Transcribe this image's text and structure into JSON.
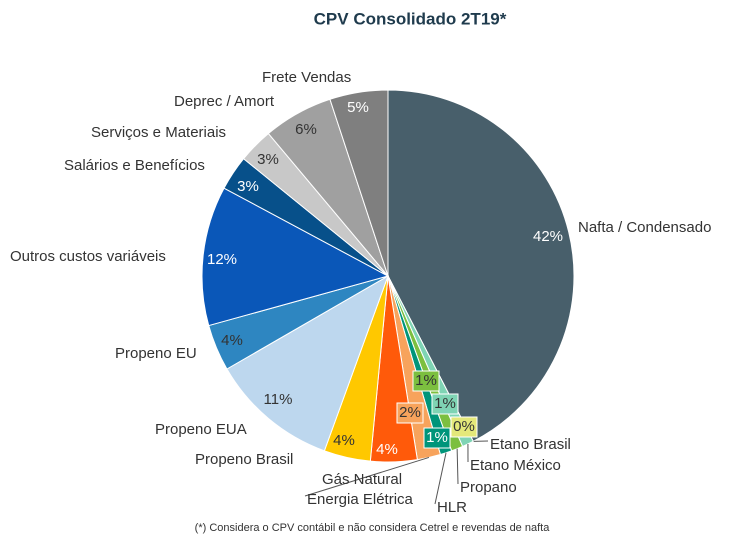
{
  "chart_data": {
    "type": "pie",
    "title": "CPV Consolidado 2T19*",
    "footnote": "(*) Considera o CPV contábil e não considera Cetrel e revendas de nafta",
    "categories": [
      "Nafta / Condensado",
      "Etano Brasil",
      "Etano México",
      "Propano",
      "HLR",
      "Energia Elétrica",
      "Gás Natural",
      "Propeno Brasil",
      "Propeno EUA",
      "Propeno EU",
      "Outros custos variáveis",
      "Salários e Benefícios",
      "Serviços e Materiais",
      "Deprec / Amort",
      "Frete Vendas"
    ],
    "values": [
      42,
      0,
      1,
      1,
      1,
      2,
      4,
      4,
      11,
      4,
      12,
      3,
      3,
      6,
      5
    ],
    "value_labels": [
      "42%",
      "0%",
      "1%",
      "1%",
      "1%",
      "2%",
      "4%",
      "4%",
      "11%",
      "4%",
      "12%",
      "3%",
      "3%",
      "6%",
      "5%"
    ],
    "colors": [
      "#485f6b",
      "#e4e87a",
      "#7fd4b4",
      "#7cbf3f",
      "#00957a",
      "#f7a35c",
      "#ff5a0a",
      "#ffc800",
      "#bdd7ee",
      "#2e86c1",
      "#0a57b8",
      "#07508a",
      "#c8c8c8",
      "#a0a0a0",
      "#7f7f7f"
    ]
  }
}
